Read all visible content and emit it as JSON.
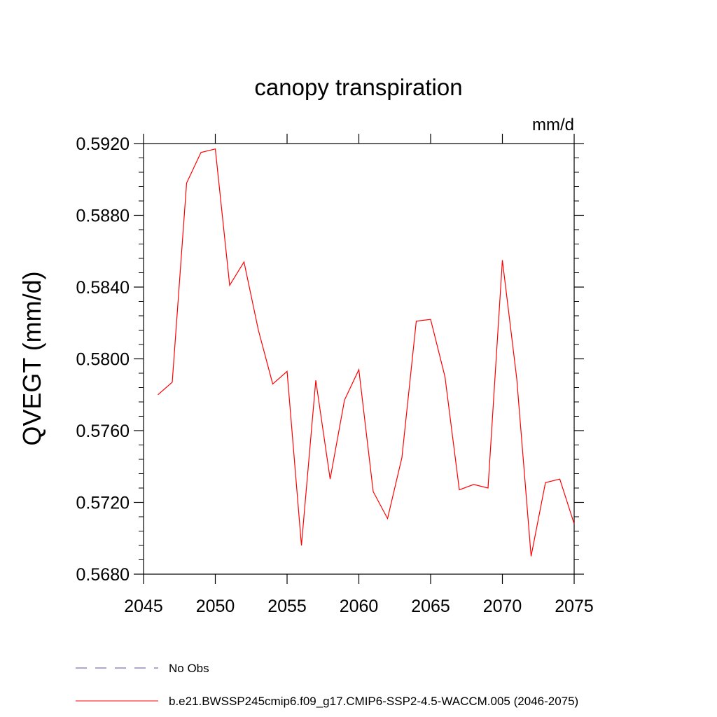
{
  "chart_data": {
    "type": "line",
    "title": "canopy transpiration",
    "units_label": "mm/d",
    "ylabel": "QVEGT  (mm/d)",
    "xlabel": "",
    "xlim": [
      2045,
      2075
    ],
    "ylim": [
      0.568,
      0.592
    ],
    "x_ticks": [
      2045,
      2050,
      2055,
      2060,
      2065,
      2070,
      2075
    ],
    "x_tick_labels": [
      "2045",
      "2050",
      "2055",
      "2060",
      "2065",
      "2070",
      "2075"
    ],
    "y_ticks": [
      0.568,
      0.572,
      0.576,
      0.58,
      0.584,
      0.588,
      0.592
    ],
    "y_tick_labels": [
      "0.5680",
      "0.5720",
      "0.5760",
      "0.5800",
      "0.5840",
      "0.5880",
      "0.5920"
    ],
    "grid": false,
    "legend_position": "bottom",
    "legend": [
      {
        "label": "No Obs",
        "color": "#5a4fa8",
        "style": "dashed"
      },
      {
        "label": "b.e21.BWSSP245cmip6.f09_g17.CMIP6-SSP2-4.5-WACCM.005 (2046-2075)",
        "color": "#ff0000",
        "style": "solid"
      }
    ],
    "series": [
      {
        "name": "b.e21.BWSSP245cmip6.f09_g17.CMIP6-SSP2-4.5-WACCM.005 (2046-2075)",
        "color": "#ff0000",
        "x": [
          2046,
          2047,
          2048,
          2049,
          2050,
          2051,
          2052,
          2053,
          2054,
          2055,
          2056,
          2057,
          2058,
          2059,
          2060,
          2061,
          2062,
          2063,
          2064,
          2065,
          2066,
          2067,
          2068,
          2069,
          2070,
          2071,
          2072,
          2073,
          2074,
          2075
        ],
        "values": [
          0.578,
          0.5787,
          0.5898,
          0.5915,
          0.5917,
          0.5841,
          0.5854,
          0.5816,
          0.5786,
          0.5793,
          0.5696,
          0.5788,
          0.5733,
          0.5777,
          0.5794,
          0.5726,
          0.5711,
          0.5745,
          0.5821,
          0.5822,
          0.579,
          0.5727,
          0.573,
          0.5728,
          0.5855,
          0.5789,
          0.569,
          0.5731,
          0.5733,
          0.5708
        ]
      }
    ]
  }
}
